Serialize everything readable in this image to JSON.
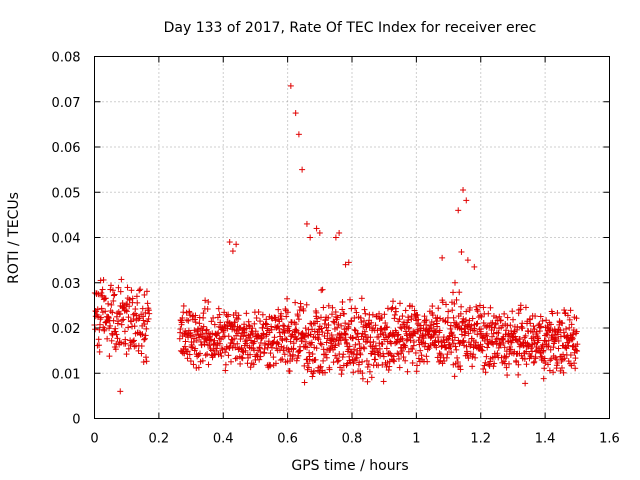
{
  "chart_data": {
    "type": "scatter",
    "title": "Day 133 of 2017, Rate Of TEC Index for receiver erec",
    "xlabel": "GPS time / hours",
    "ylabel": "ROTI / TECUs",
    "xlim": [
      0,
      1.6
    ],
    "ylim": [
      0,
      0.08
    ],
    "grid": true,
    "marker": "+",
    "color": "#e00000",
    "xticks": [
      "0",
      "0.2",
      "0.4",
      "0.6",
      "0.8",
      "1",
      "1.2",
      "1.4",
      "1.6"
    ],
    "yticks": [
      "0",
      "0.01",
      "0.02",
      "0.03",
      "0.04",
      "0.05",
      "0.06",
      "0.07",
      "0.08"
    ],
    "outliers": {
      "x": [
        0.61,
        0.625,
        0.635,
        0.645,
        0.66,
        1.13,
        1.145,
        1.155,
        1.14,
        0.69,
        0.7,
        0.67,
        0.75,
        0.76,
        0.78,
        0.79,
        0.08,
        0.42,
        0.44,
        0.43,
        1.08,
        1.16,
        1.18,
        1.12
      ],
      "y": [
        0.0735,
        0.0675,
        0.0628,
        0.055,
        0.043,
        0.046,
        0.0505,
        0.0482,
        0.0368,
        0.042,
        0.041,
        0.04,
        0.04,
        0.041,
        0.034,
        0.0345,
        0.006,
        0.039,
        0.0385,
        0.037,
        0.0355,
        0.035,
        0.0335,
        0.03
      ]
    },
    "segments": [
      {
        "x0": 0.0,
        "x1": 0.17,
        "ylo": 0.009,
        "yhi": 0.034,
        "n": 170
      },
      {
        "x0": 0.265,
        "x1": 0.6,
        "ylo": 0.008,
        "yhi": 0.028,
        "n": 380
      },
      {
        "x0": 0.6,
        "x1": 0.95,
        "ylo": 0.005,
        "yhi": 0.03,
        "n": 420
      },
      {
        "x0": 0.95,
        "x1": 1.2,
        "ylo": 0.008,
        "yhi": 0.029,
        "n": 300
      },
      {
        "x0": 1.2,
        "x1": 1.5,
        "ylo": 0.007,
        "yhi": 0.027,
        "n": 360
      }
    ]
  }
}
